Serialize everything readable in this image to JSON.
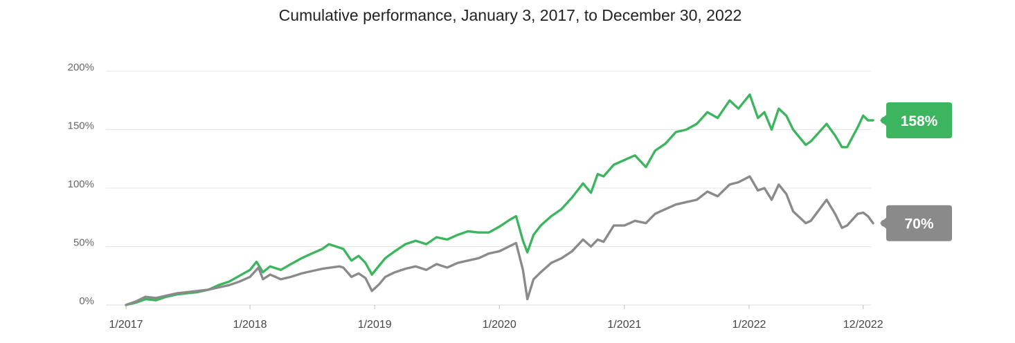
{
  "chart_data": {
    "type": "line",
    "title": "Cumulative performance, January 3, 2017, to December 30, 2022",
    "xlabel": "",
    "ylabel": "",
    "x_range": [
      "2017-01-03",
      "2022-12-30"
    ],
    "ylim": [
      0,
      200
    ],
    "y_ticks": [
      {
        "value": 0,
        "label": "0%"
      },
      {
        "value": 50,
        "label": "50%"
      },
      {
        "value": 100,
        "label": "100%"
      },
      {
        "value": 150,
        "label": "150%"
      },
      {
        "value": 200,
        "label": "200%"
      }
    ],
    "x_ticks": [
      {
        "date": "2017-01-03",
        "label": "1/2017"
      },
      {
        "date": "2018-01-01",
        "label": "1/2018"
      },
      {
        "date": "2019-01-01",
        "label": "1/2019"
      },
      {
        "date": "2020-01-01",
        "label": "1/2020"
      },
      {
        "date": "2021-01-01",
        "label": "1/2021"
      },
      {
        "date": "2022-01-01",
        "label": "1/2022"
      },
      {
        "date": "2022-12-01",
        "label": "12/2022"
      }
    ],
    "grid": true,
    "legend": "none",
    "series": [
      {
        "color": "#3cb55e",
        "end_label": "158%",
        "points": [
          [
            "2017-01-03",
            0
          ],
          [
            "2017-02-01",
            2
          ],
          [
            "2017-03-01",
            5
          ],
          [
            "2017-04-01",
            4
          ],
          [
            "2017-05-01",
            7
          ],
          [
            "2017-06-01",
            9
          ],
          [
            "2017-07-01",
            10
          ],
          [
            "2017-08-01",
            11
          ],
          [
            "2017-09-01",
            13
          ],
          [
            "2017-10-01",
            17
          ],
          [
            "2017-11-01",
            20
          ],
          [
            "2017-12-01",
            25
          ],
          [
            "2018-01-01",
            30
          ],
          [
            "2018-01-20",
            37
          ],
          [
            "2018-02-08",
            28
          ],
          [
            "2018-03-01",
            33
          ],
          [
            "2018-04-01",
            30
          ],
          [
            "2018-05-01",
            35
          ],
          [
            "2018-06-01",
            40
          ],
          [
            "2018-07-01",
            44
          ],
          [
            "2018-08-01",
            48
          ],
          [
            "2018-08-20",
            52
          ],
          [
            "2018-09-10",
            50
          ],
          [
            "2018-10-01",
            48
          ],
          [
            "2018-10-25",
            38
          ],
          [
            "2018-11-15",
            42
          ],
          [
            "2018-12-05",
            36
          ],
          [
            "2018-12-24",
            26
          ],
          [
            "2019-01-15",
            34
          ],
          [
            "2019-02-01",
            40
          ],
          [
            "2019-03-01",
            46
          ],
          [
            "2019-04-01",
            52
          ],
          [
            "2019-05-01",
            55
          ],
          [
            "2019-06-01",
            52
          ],
          [
            "2019-07-01",
            58
          ],
          [
            "2019-08-01",
            56
          ],
          [
            "2019-09-01",
            60
          ],
          [
            "2019-10-01",
            63
          ],
          [
            "2019-11-01",
            62
          ],
          [
            "2019-12-01",
            62
          ],
          [
            "2020-01-01",
            67
          ],
          [
            "2020-02-01",
            73
          ],
          [
            "2020-02-19",
            76
          ],
          [
            "2020-03-10",
            55
          ],
          [
            "2020-03-23",
            45
          ],
          [
            "2020-04-10",
            60
          ],
          [
            "2020-05-01",
            68
          ],
          [
            "2020-06-01",
            76
          ],
          [
            "2020-07-01",
            82
          ],
          [
            "2020-08-01",
            92
          ],
          [
            "2020-09-02",
            104
          ],
          [
            "2020-09-25",
            96
          ],
          [
            "2020-10-15",
            112
          ],
          [
            "2020-11-01",
            110
          ],
          [
            "2020-12-01",
            120
          ],
          [
            "2021-01-01",
            124
          ],
          [
            "2021-02-01",
            128
          ],
          [
            "2021-03-05",
            118
          ],
          [
            "2021-04-01",
            132
          ],
          [
            "2021-05-01",
            138
          ],
          [
            "2021-06-01",
            148
          ],
          [
            "2021-07-01",
            150
          ],
          [
            "2021-08-01",
            155
          ],
          [
            "2021-09-01",
            165
          ],
          [
            "2021-10-01",
            160
          ],
          [
            "2021-11-05",
            175
          ],
          [
            "2021-12-01",
            168
          ],
          [
            "2022-01-03",
            180
          ],
          [
            "2022-01-27",
            160
          ],
          [
            "2022-02-15",
            165
          ],
          [
            "2022-03-08",
            150
          ],
          [
            "2022-03-29",
            168
          ],
          [
            "2022-04-20",
            162
          ],
          [
            "2022-05-10",
            150
          ],
          [
            "2022-06-16",
            137
          ],
          [
            "2022-07-01",
            140
          ],
          [
            "2022-08-16",
            155
          ],
          [
            "2022-09-10",
            145
          ],
          [
            "2022-09-30",
            135
          ],
          [
            "2022-10-15",
            135
          ],
          [
            "2022-11-15",
            152
          ],
          [
            "2022-12-01",
            162
          ],
          [
            "2022-12-15",
            158
          ],
          [
            "2022-12-30",
            158
          ]
        ]
      },
      {
        "color": "#8a8a8a",
        "end_label": "70%",
        "points": [
          [
            "2017-01-03",
            0
          ],
          [
            "2017-02-01",
            3
          ],
          [
            "2017-03-01",
            7
          ],
          [
            "2017-04-01",
            6
          ],
          [
            "2017-05-01",
            8
          ],
          [
            "2017-06-01",
            10
          ],
          [
            "2017-07-01",
            11
          ],
          [
            "2017-08-01",
            12
          ],
          [
            "2017-09-01",
            13
          ],
          [
            "2017-10-01",
            15
          ],
          [
            "2017-11-01",
            17
          ],
          [
            "2017-12-01",
            20
          ],
          [
            "2018-01-01",
            24
          ],
          [
            "2018-01-26",
            32
          ],
          [
            "2018-02-08",
            22
          ],
          [
            "2018-03-01",
            26
          ],
          [
            "2018-04-01",
            22
          ],
          [
            "2018-05-01",
            24
          ],
          [
            "2018-06-01",
            27
          ],
          [
            "2018-07-01",
            29
          ],
          [
            "2018-08-01",
            31
          ],
          [
            "2018-09-20",
            33
          ],
          [
            "2018-10-01",
            32
          ],
          [
            "2018-10-25",
            24
          ],
          [
            "2018-11-15",
            27
          ],
          [
            "2018-12-05",
            23
          ],
          [
            "2018-12-24",
            12
          ],
          [
            "2019-01-15",
            18
          ],
          [
            "2019-02-01",
            24
          ],
          [
            "2019-03-01",
            28
          ],
          [
            "2019-04-01",
            31
          ],
          [
            "2019-05-01",
            33
          ],
          [
            "2019-06-01",
            30
          ],
          [
            "2019-07-01",
            35
          ],
          [
            "2019-08-01",
            32
          ],
          [
            "2019-09-01",
            36
          ],
          [
            "2019-10-01",
            38
          ],
          [
            "2019-11-01",
            40
          ],
          [
            "2019-12-01",
            44
          ],
          [
            "2020-01-01",
            46
          ],
          [
            "2020-02-19",
            53
          ],
          [
            "2020-03-10",
            30
          ],
          [
            "2020-03-23",
            5
          ],
          [
            "2020-04-10",
            22
          ],
          [
            "2020-05-01",
            28
          ],
          [
            "2020-06-01",
            36
          ],
          [
            "2020-07-01",
            40
          ],
          [
            "2020-08-01",
            46
          ],
          [
            "2020-09-02",
            56
          ],
          [
            "2020-09-25",
            50
          ],
          [
            "2020-10-15",
            56
          ],
          [
            "2020-11-01",
            54
          ],
          [
            "2020-12-01",
            68
          ],
          [
            "2021-01-01",
            68
          ],
          [
            "2021-02-01",
            72
          ],
          [
            "2021-03-05",
            70
          ],
          [
            "2021-04-01",
            78
          ],
          [
            "2021-05-01",
            82
          ],
          [
            "2021-06-01",
            86
          ],
          [
            "2021-07-01",
            88
          ],
          [
            "2021-08-01",
            90
          ],
          [
            "2021-09-01",
            97
          ],
          [
            "2021-10-01",
            93
          ],
          [
            "2021-11-05",
            103
          ],
          [
            "2021-12-01",
            105
          ],
          [
            "2022-01-03",
            110
          ],
          [
            "2022-01-27",
            98
          ],
          [
            "2022-02-15",
            100
          ],
          [
            "2022-03-08",
            90
          ],
          [
            "2022-03-29",
            103
          ],
          [
            "2022-04-20",
            95
          ],
          [
            "2022-05-10",
            80
          ],
          [
            "2022-06-16",
            70
          ],
          [
            "2022-07-01",
            72
          ],
          [
            "2022-08-16",
            90
          ],
          [
            "2022-09-10",
            78
          ],
          [
            "2022-09-30",
            66
          ],
          [
            "2022-10-15",
            68
          ],
          [
            "2022-11-15",
            78
          ],
          [
            "2022-12-01",
            79
          ],
          [
            "2022-12-15",
            76
          ],
          [
            "2022-12-30",
            70
          ]
        ]
      }
    ]
  }
}
